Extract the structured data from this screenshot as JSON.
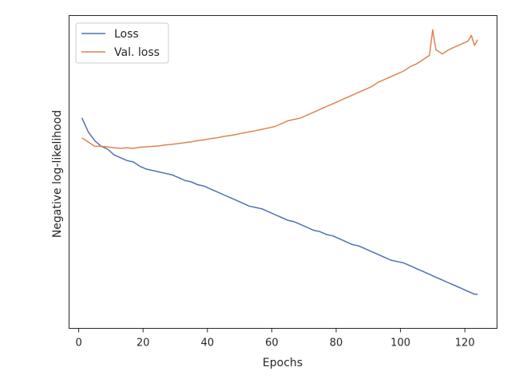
{
  "chart_data": {
    "type": "line",
    "xlabel": "Epochs",
    "ylabel": "Negative log-likelihood",
    "xlim": [
      -3,
      130
    ],
    "ylim": [
      -0.05,
      1.05
    ],
    "xticks": [
      0,
      20,
      40,
      60,
      80,
      100,
      120
    ],
    "yticks_shown": false,
    "grid": false,
    "legend": "upper-left",
    "series": [
      {
        "name": "Loss",
        "color": "#4c72b0",
        "x": [
          1,
          3,
          5,
          7,
          9,
          11,
          13,
          15,
          17,
          19,
          21,
          23,
          25,
          27,
          29,
          31,
          33,
          35,
          37,
          39,
          41,
          43,
          45,
          47,
          49,
          51,
          53,
          55,
          57,
          59,
          61,
          63,
          65,
          67,
          69,
          71,
          73,
          75,
          77,
          79,
          81,
          83,
          85,
          87,
          89,
          91,
          93,
          95,
          97,
          99,
          101,
          103,
          105,
          107,
          109,
          111,
          113,
          115,
          117,
          119,
          121,
          123,
          124
        ],
        "y": [
          0.69,
          0.64,
          0.61,
          0.59,
          0.58,
          0.56,
          0.55,
          0.54,
          0.535,
          0.52,
          0.51,
          0.505,
          0.5,
          0.495,
          0.49,
          0.48,
          0.47,
          0.465,
          0.455,
          0.45,
          0.44,
          0.43,
          0.42,
          0.41,
          0.4,
          0.39,
          0.38,
          0.375,
          0.37,
          0.36,
          0.35,
          0.34,
          0.33,
          0.325,
          0.315,
          0.305,
          0.295,
          0.29,
          0.28,
          0.275,
          0.265,
          0.255,
          0.245,
          0.24,
          0.23,
          0.22,
          0.21,
          0.2,
          0.19,
          0.185,
          0.18,
          0.17,
          0.16,
          0.15,
          0.14,
          0.13,
          0.12,
          0.11,
          0.1,
          0.09,
          0.08,
          0.07,
          0.07
        ]
      },
      {
        "name": "Val. loss",
        "color": "#dd8452",
        "x": [
          1,
          3,
          5,
          7,
          9,
          11,
          13,
          15,
          17,
          19,
          21,
          23,
          25,
          27,
          29,
          31,
          33,
          35,
          37,
          39,
          41,
          43,
          45,
          47,
          49,
          51,
          53,
          55,
          57,
          59,
          61,
          63,
          65,
          67,
          69,
          71,
          73,
          75,
          77,
          79,
          81,
          83,
          85,
          87,
          89,
          91,
          93,
          95,
          97,
          99,
          101,
          103,
          105,
          107,
          109,
          110,
          111,
          113,
          115,
          117,
          119,
          121,
          122,
          123,
          124
        ],
        "y": [
          0.62,
          0.605,
          0.59,
          0.59,
          0.588,
          0.585,
          0.583,
          0.585,
          0.583,
          0.587,
          0.588,
          0.59,
          0.592,
          0.595,
          0.597,
          0.6,
          0.603,
          0.606,
          0.61,
          0.613,
          0.617,
          0.62,
          0.625,
          0.628,
          0.632,
          0.637,
          0.641,
          0.645,
          0.65,
          0.655,
          0.66,
          0.67,
          0.68,
          0.685,
          0.69,
          0.7,
          0.71,
          0.72,
          0.73,
          0.74,
          0.75,
          0.76,
          0.77,
          0.78,
          0.79,
          0.8,
          0.815,
          0.825,
          0.835,
          0.845,
          0.855,
          0.87,
          0.88,
          0.895,
          0.91,
          1.0,
          0.93,
          0.915,
          0.93,
          0.94,
          0.95,
          0.96,
          0.98,
          0.945,
          0.965
        ]
      }
    ]
  }
}
